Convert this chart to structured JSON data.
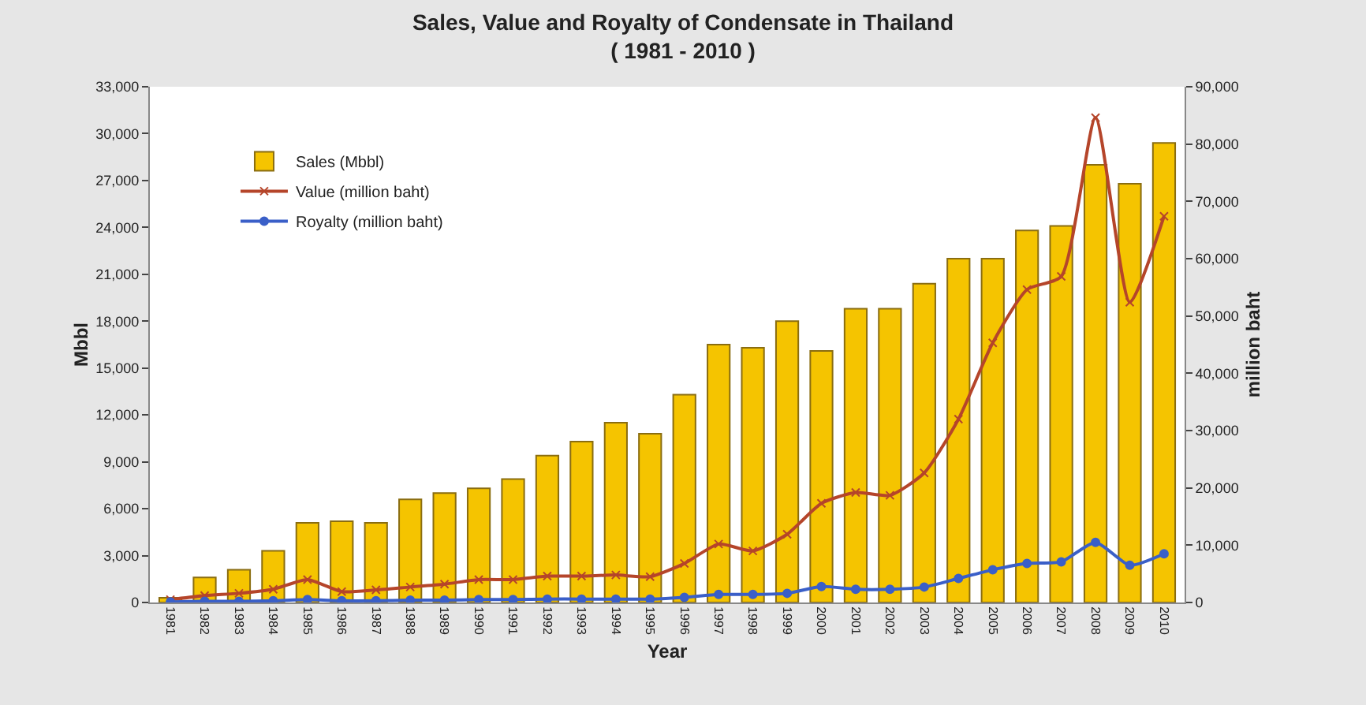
{
  "chart_data": {
    "type": "bar",
    "title": "Sales, Value and Royalty of Condensate in Thailand",
    "subtitle": "( 1981 - 2010 )",
    "xlabel": "Year",
    "ylabel": "Mbbl",
    "y2label": "million baht",
    "categories": [
      "1981",
      "1982",
      "1983",
      "1984",
      "1985",
      "1986",
      "1987",
      "1988",
      "1989",
      "1990",
      "1991",
      "1992",
      "1993",
      "1994",
      "1995",
      "1996",
      "1997",
      "1998",
      "1999",
      "2000",
      "2001",
      "2002",
      "2003",
      "2004",
      "2005",
      "2006",
      "2007",
      "2008",
      "2009",
      "2010"
    ],
    "series": [
      {
        "name": "Sales (Mbbl)",
        "color": "#f5c400",
        "values": [
          300,
          1600,
          2100,
          3300,
          5100,
          5200,
          5100,
          6600,
          7000,
          7300,
          7900,
          9400,
          10300,
          11500,
          10800,
          13300,
          16500,
          16300,
          18000,
          16100,
          18800,
          18800,
          20400,
          22000,
          22000,
          23800,
          24100,
          28000,
          26800,
          29400
        ]
      },
      {
        "name": "Value (million baht)",
        "type": "line",
        "axis": "y2",
        "color": "#b5452a",
        "marker": "cross",
        "values": [
          500,
          1200,
          1600,
          2300,
          4000,
          1900,
          2200,
          2700,
          3200,
          4000,
          4000,
          4600,
          4600,
          4800,
          4500,
          6800,
          10200,
          9000,
          11900,
          17300,
          19200,
          18700,
          22600,
          32000,
          45300,
          54600,
          56900,
          84600,
          52400,
          67400
        ]
      },
      {
        "name": "Royalty (million baht)",
        "type": "line",
        "axis": "y2",
        "color": "#3a5fc8",
        "marker": "circle",
        "values": [
          100,
          200,
          200,
          300,
          500,
          300,
          300,
          400,
          400,
          500,
          500,
          600,
          600,
          600,
          600,
          900,
          1400,
          1400,
          1600,
          2800,
          2300,
          2300,
          2700,
          4200,
          5700,
          6800,
          7100,
          10500,
          6500,
          8500
        ]
      }
    ],
    "ylim": [
      0,
      33000
    ],
    "yticks": [
      {
        "value": 0,
        "label": "0"
      },
      {
        "value": 3000,
        "label": "3,000"
      },
      {
        "value": 6000,
        "label": "6,000"
      },
      {
        "value": 9000,
        "label": "9,000"
      },
      {
        "value": 12000,
        "label": "12,000"
      },
      {
        "value": 15000,
        "label": "15,000"
      },
      {
        "value": 18000,
        "label": "18,000"
      },
      {
        "value": 21000,
        "label": "21,000"
      },
      {
        "value": 24000,
        "label": "24,000"
      },
      {
        "value": 27000,
        "label": "27,000"
      },
      {
        "value": 30000,
        "label": "30,000"
      },
      {
        "value": 33000,
        "label": "33,000"
      }
    ],
    "y2lim": [
      0,
      90000
    ],
    "y2ticks": [
      {
        "value": 0,
        "label": "0"
      },
      {
        "value": 10000,
        "label": "10,000"
      },
      {
        "value": 20000,
        "label": "20,000"
      },
      {
        "value": 30000,
        "label": "30,000"
      },
      {
        "value": 40000,
        "label": "40,000"
      },
      {
        "value": 50000,
        "label": "50,000"
      },
      {
        "value": 60000,
        "label": "60,000"
      },
      {
        "value": 70000,
        "label": "70,000"
      },
      {
        "value": 80000,
        "label": "80,000"
      },
      {
        "value": 90000,
        "label": "90,000"
      }
    ],
    "grid": false,
    "legend": "top left"
  }
}
